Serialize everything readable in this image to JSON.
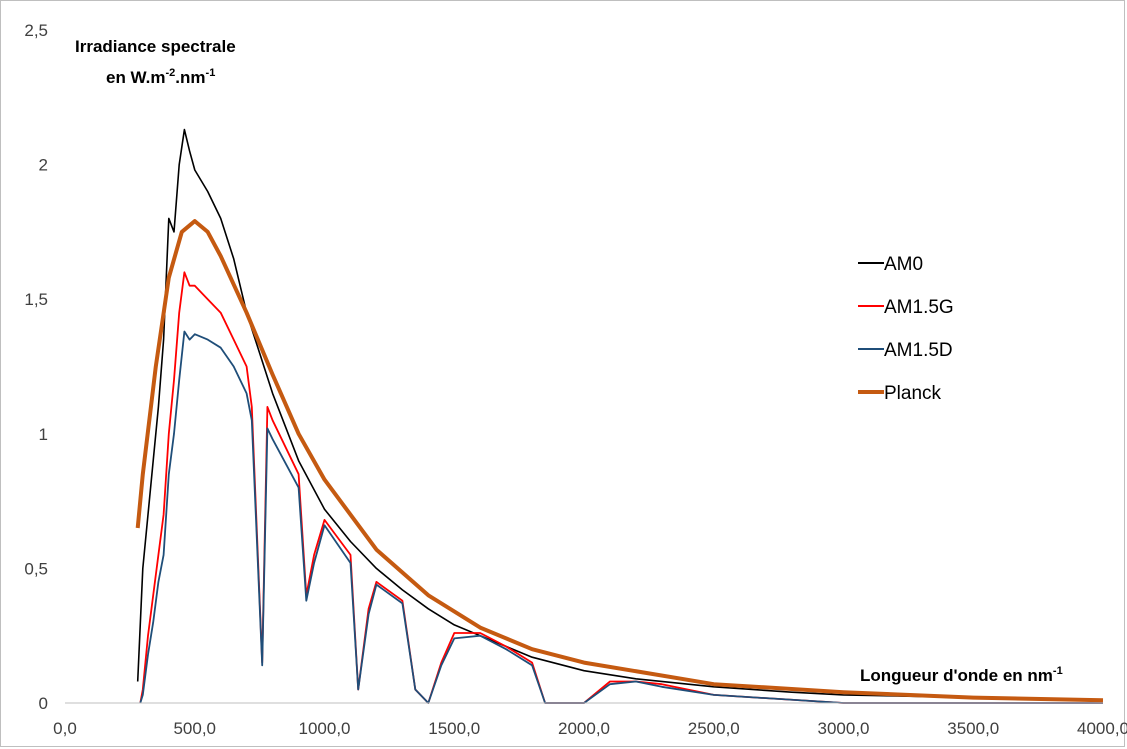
{
  "chart_data": {
    "type": "line",
    "ylabel": {
      "line1": "Irradiance spectrale",
      "line2_main": "en W.m",
      "line2_sup1": "-2",
      "line2_mid": ".nm",
      "line2_sup2": "-1"
    },
    "xlabel": {
      "main": "Longueur d'onde en nm",
      "sup": "-1"
    },
    "xlim": [
      0,
      4000
    ],
    "ylim": [
      0,
      2.5
    ],
    "x_ticks": [
      0,
      500,
      1000,
      1500,
      2000,
      2500,
      3000,
      3500,
      4000
    ],
    "x_tick_labels": [
      "0,0",
      "500,0",
      "1000,0",
      "1500,0",
      "2000,0",
      "2500,0",
      "3000,0",
      "3500,0",
      "4000,0"
    ],
    "y_ticks": [
      0,
      0.5,
      1,
      1.5,
      2,
      2.5
    ],
    "y_tick_labels": [
      "0",
      "0,5",
      "1",
      "1,5",
      "2",
      "2,5"
    ],
    "grid": false,
    "legend_position": "right",
    "series": [
      {
        "name": "AM0",
        "color": "#000000",
        "x": [
          280,
          300,
          320,
          340,
          360,
          380,
          400,
          420,
          440,
          460,
          480,
          500,
          550,
          600,
          650,
          700,
          750,
          800,
          900,
          1000,
          1100,
          1200,
          1300,
          1400,
          1500,
          1600,
          1800,
          2000,
          2200,
          2500,
          2800,
          3000,
          3500,
          4000
        ],
        "y": [
          0.08,
          0.5,
          0.7,
          0.9,
          1.1,
          1.35,
          1.8,
          1.75,
          2.0,
          2.13,
          2.05,
          1.98,
          1.9,
          1.8,
          1.65,
          1.45,
          1.3,
          1.15,
          0.9,
          0.72,
          0.6,
          0.5,
          0.42,
          0.35,
          0.29,
          0.25,
          0.17,
          0.12,
          0.09,
          0.06,
          0.04,
          0.03,
          0.02,
          0.01
        ]
      },
      {
        "name": "AM1.5G",
        "color": "#ff0000",
        "x": [
          290,
          300,
          320,
          340,
          360,
          380,
          400,
          420,
          440,
          460,
          480,
          500,
          550,
          600,
          650,
          700,
          720,
          760,
          780,
          800,
          900,
          930,
          960,
          1000,
          1100,
          1130,
          1170,
          1200,
          1300,
          1350,
          1400,
          1450,
          1500,
          1600,
          1700,
          1800,
          1850,
          1900,
          1950,
          2000,
          2100,
          2200,
          2300,
          2500,
          3000,
          4000
        ],
        "y": [
          0,
          0.05,
          0.25,
          0.4,
          0.55,
          0.7,
          1.0,
          1.2,
          1.45,
          1.6,
          1.55,
          1.55,
          1.5,
          1.45,
          1.35,
          1.25,
          1.1,
          0.15,
          1.1,
          1.05,
          0.85,
          0.4,
          0.55,
          0.68,
          0.55,
          0.05,
          0.35,
          0.45,
          0.38,
          0.05,
          0.0,
          0.15,
          0.26,
          0.26,
          0.21,
          0.15,
          0.0,
          0.0,
          0.0,
          0.0,
          0.08,
          0.08,
          0.07,
          0.03,
          0.0,
          0.0
        ]
      },
      {
        "name": "AM1.5D",
        "color": "#1f4e79",
        "x": [
          290,
          300,
          320,
          340,
          360,
          380,
          400,
          420,
          440,
          460,
          480,
          500,
          550,
          600,
          650,
          700,
          720,
          760,
          780,
          800,
          900,
          930,
          960,
          1000,
          1100,
          1130,
          1170,
          1200,
          1300,
          1350,
          1400,
          1450,
          1500,
          1600,
          1700,
          1800,
          1850,
          1900,
          1950,
          2000,
          2100,
          2200,
          2300,
          2500,
          3000,
          4000
        ],
        "y": [
          0,
          0.03,
          0.18,
          0.3,
          0.45,
          0.55,
          0.85,
          1.0,
          1.2,
          1.38,
          1.35,
          1.37,
          1.35,
          1.32,
          1.25,
          1.15,
          1.05,
          0.14,
          1.02,
          0.98,
          0.8,
          0.38,
          0.52,
          0.66,
          0.52,
          0.05,
          0.33,
          0.44,
          0.37,
          0.05,
          0.0,
          0.14,
          0.24,
          0.25,
          0.2,
          0.14,
          0.0,
          0.0,
          0.0,
          0.0,
          0.07,
          0.08,
          0.06,
          0.03,
          0.0,
          0.0
        ]
      },
      {
        "name": "Planck",
        "color": "#c55a11",
        "x": [
          280,
          300,
          350,
          400,
          450,
          500,
          550,
          600,
          700,
          800,
          900,
          1000,
          1200,
          1400,
          1600,
          1800,
          2000,
          2500,
          3000,
          3500,
          4000
        ],
        "y": [
          0.65,
          0.85,
          1.25,
          1.58,
          1.75,
          1.79,
          1.75,
          1.66,
          1.45,
          1.22,
          1.0,
          0.83,
          0.57,
          0.4,
          0.28,
          0.2,
          0.15,
          0.07,
          0.04,
          0.02,
          0.01
        ]
      }
    ]
  }
}
